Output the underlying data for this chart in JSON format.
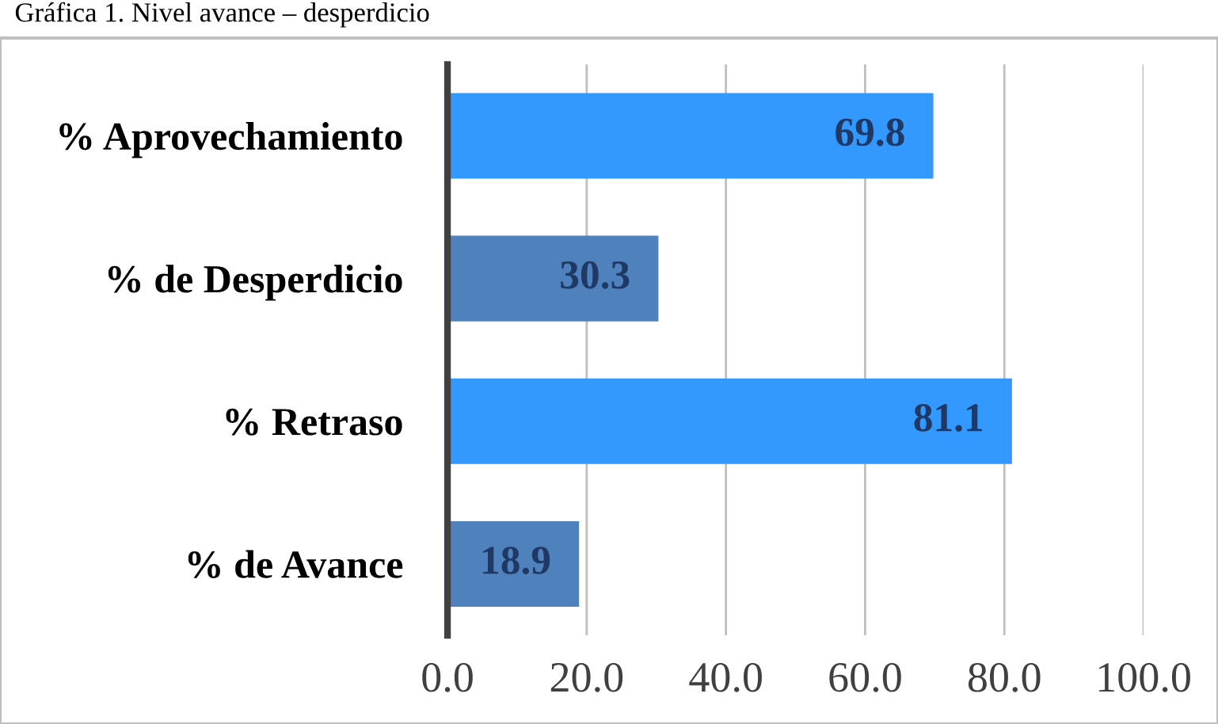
{
  "chart_data": {
    "type": "bar",
    "orientation": "horizontal",
    "title": "Gráfica 1. Nivel avance – desperdicio",
    "categories": [
      "% Aprovechamiento",
      "% de Desperdicio",
      "% Retraso",
      "% de Avance"
    ],
    "values": [
      69.8,
      30.3,
      81.1,
      18.9
    ],
    "colors": [
      "#3399ff",
      "#4f81bd",
      "#3399ff",
      "#4f81bd"
    ],
    "xlim": [
      0,
      100
    ],
    "xticks": [
      {
        "value": 0,
        "label": "0.0"
      },
      {
        "value": 20,
        "label": "20.0"
      },
      {
        "value": 40,
        "label": "40.0"
      },
      {
        "value": 60,
        "label": "60.0"
      },
      {
        "value": 80,
        "label": "80.0"
      },
      {
        "value": 100,
        "label": "100.0"
      }
    ],
    "grid": "x",
    "data_labels": true
  }
}
